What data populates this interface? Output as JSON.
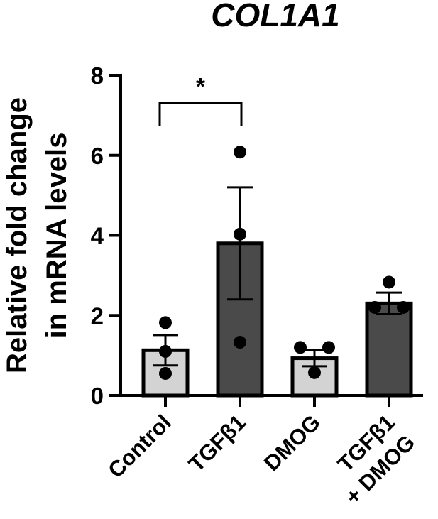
{
  "chart_data": {
    "type": "bar",
    "title": "COL1A1",
    "ylabel_lines": [
      "Relative fold change",
      "in mRNA levels"
    ],
    "xlabel": "",
    "ylim": [
      0,
      8
    ],
    "yticks": [
      0,
      2,
      4,
      6,
      8
    ],
    "grid": false,
    "legend": "none",
    "categories": [
      {
        "lines": [
          "Control"
        ]
      },
      {
        "lines": [
          "TGFβ1"
        ]
      },
      {
        "lines": [
          "DMOG"
        ]
      },
      {
        "lines": [
          "TGFβ1",
          "+ DMOG"
        ]
      }
    ],
    "values": [
      1.13,
      3.8,
      0.93,
      2.3
    ],
    "sem": [
      0.38,
      1.4,
      0.2,
      0.27
    ],
    "points": [
      [
        1.82,
        1.1,
        0.55
      ],
      [
        6.08,
        4.03,
        1.33
      ],
      [
        1.2,
        1.2,
        0.57
      ],
      [
        2.83,
        2.2,
        2.2
      ]
    ],
    "colors": [
      "#d3d3d3",
      "#4a4a4a",
      "#d3d3d3",
      "#4a4a4a"
    ],
    "significance": [
      {
        "from": 0,
        "to": 1,
        "label": "*",
        "y": 7.3
      }
    ]
  }
}
